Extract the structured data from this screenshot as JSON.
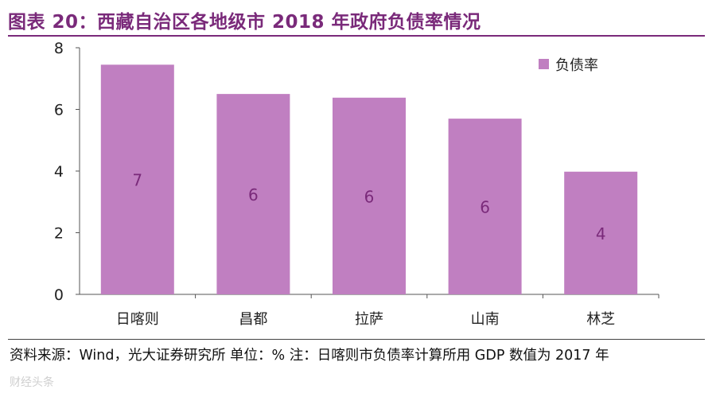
{
  "header": {
    "title": "图表 20：西藏自治区各地级市 2018 年政府负债率情况"
  },
  "chart_data": {
    "type": "bar",
    "title": "",
    "xlabel": "",
    "ylabel": "",
    "categories": [
      "日喀则",
      "昌都",
      "拉萨",
      "山南",
      "林芝"
    ],
    "series": [
      {
        "name": "负债率",
        "values": [
          7.45,
          6.5,
          6.38,
          5.7,
          3.98
        ],
        "labels": [
          "7",
          "6",
          "6",
          "6",
          "4"
        ],
        "color": "#c07fc1"
      }
    ],
    "ylim": [
      0,
      8
    ],
    "yticks": [
      "0",
      "2",
      "4",
      "6",
      "8"
    ],
    "grid": false,
    "legend_position": "top-right",
    "label_color": "#7a2a7a"
  },
  "footer": {
    "source": "资料来源：Wind，光大证券研究所    单位：%    注：日喀则市负债率计算所用 GDP 数值为 2017 年",
    "watermark": "财经头条"
  }
}
